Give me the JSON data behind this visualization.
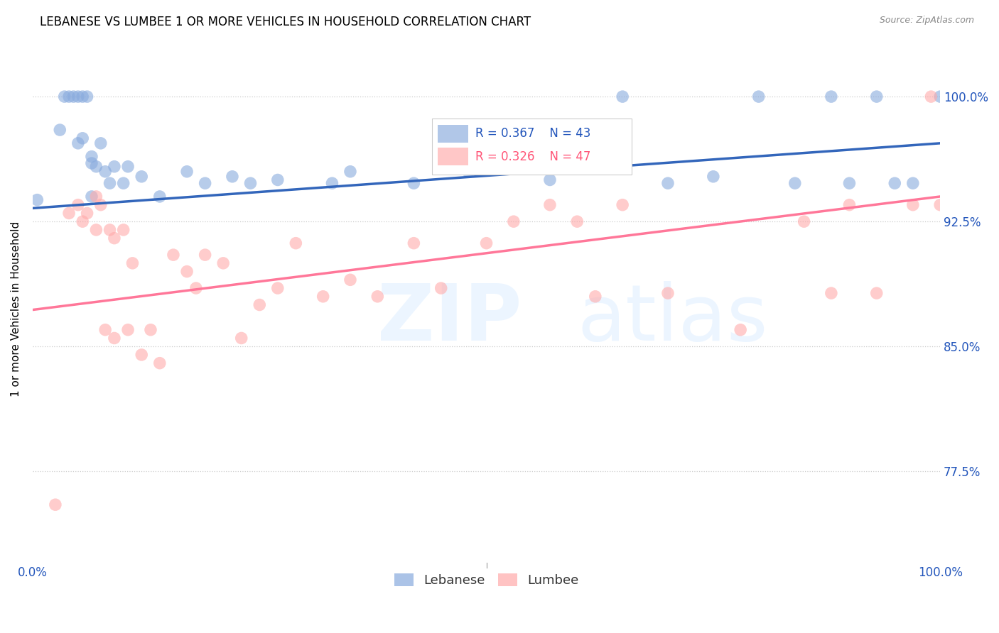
{
  "title": "LEBANESE VS LUMBEE 1 OR MORE VEHICLES IN HOUSEHOLD CORRELATION CHART",
  "source": "Source: ZipAtlas.com",
  "ylabel": "1 or more Vehicles in Household",
  "ytick_labels": [
    "100.0%",
    "92.5%",
    "85.0%",
    "77.5%"
  ],
  "ytick_values": [
    1.0,
    0.925,
    0.85,
    0.775
  ],
  "xlim": [
    0.0,
    1.0
  ],
  "ylim": [
    0.72,
    1.025
  ],
  "legend_R1": "R = 0.367",
  "legend_N1": "N = 43",
  "legend_R2": "R = 0.326",
  "legend_N2": "N = 47",
  "color_lebanese": "#88AADD",
  "color_lumbee": "#FFAAAA",
  "color_line_lebanese": "#3366BB",
  "color_line_lumbee": "#FF7799",
  "lebanese_x": [
    0.005,
    0.03,
    0.035,
    0.04,
    0.045,
    0.05,
    0.05,
    0.055,
    0.055,
    0.06,
    0.065,
    0.065,
    0.065,
    0.07,
    0.075,
    0.08,
    0.085,
    0.09,
    0.1,
    0.105,
    0.12,
    0.14,
    0.17,
    0.19,
    0.22,
    0.24,
    0.27,
    0.33,
    0.35,
    0.42,
    0.48,
    0.57,
    0.65,
    0.7,
    0.75,
    0.8,
    0.84,
    0.88,
    0.9,
    0.93,
    0.95,
    0.97,
    1.0
  ],
  "lebanese_y": [
    0.938,
    0.98,
    1.0,
    1.0,
    1.0,
    1.0,
    0.972,
    1.0,
    0.975,
    1.0,
    0.964,
    0.94,
    0.96,
    0.958,
    0.972,
    0.955,
    0.948,
    0.958,
    0.948,
    0.958,
    0.952,
    0.94,
    0.955,
    0.948,
    0.952,
    0.948,
    0.95,
    0.948,
    0.955,
    0.948,
    0.955,
    0.95,
    1.0,
    0.948,
    0.952,
    1.0,
    0.948,
    1.0,
    0.948,
    1.0,
    0.948,
    0.948,
    1.0
  ],
  "lumbee_x": [
    0.025,
    0.04,
    0.05,
    0.055,
    0.06,
    0.07,
    0.07,
    0.075,
    0.08,
    0.085,
    0.09,
    0.09,
    0.1,
    0.105,
    0.11,
    0.12,
    0.13,
    0.14,
    0.155,
    0.17,
    0.18,
    0.19,
    0.21,
    0.23,
    0.25,
    0.27,
    0.29,
    0.32,
    0.35,
    0.38,
    0.42,
    0.45,
    0.5,
    0.53,
    0.57,
    0.6,
    0.62,
    0.65,
    0.7,
    0.78,
    0.85,
    0.88,
    0.9,
    0.93,
    0.97,
    0.99,
    1.0
  ],
  "lumbee_y": [
    0.755,
    0.93,
    0.935,
    0.925,
    0.93,
    0.94,
    0.92,
    0.935,
    0.86,
    0.92,
    0.855,
    0.915,
    0.92,
    0.86,
    0.9,
    0.845,
    0.86,
    0.84,
    0.905,
    0.895,
    0.885,
    0.905,
    0.9,
    0.855,
    0.875,
    0.885,
    0.912,
    0.88,
    0.89,
    0.88,
    0.912,
    0.885,
    0.912,
    0.925,
    0.935,
    0.925,
    0.88,
    0.935,
    0.882,
    0.86,
    0.925,
    0.882,
    0.935,
    0.882,
    0.935,
    1.0,
    0.935
  ],
  "line_leb_x0": 0.0,
  "line_leb_y0": 0.933,
  "line_leb_x1": 1.0,
  "line_leb_y1": 0.972,
  "line_lum_x0": 0.0,
  "line_lum_y0": 0.872,
  "line_lum_x1": 1.0,
  "line_lum_y1": 0.94
}
